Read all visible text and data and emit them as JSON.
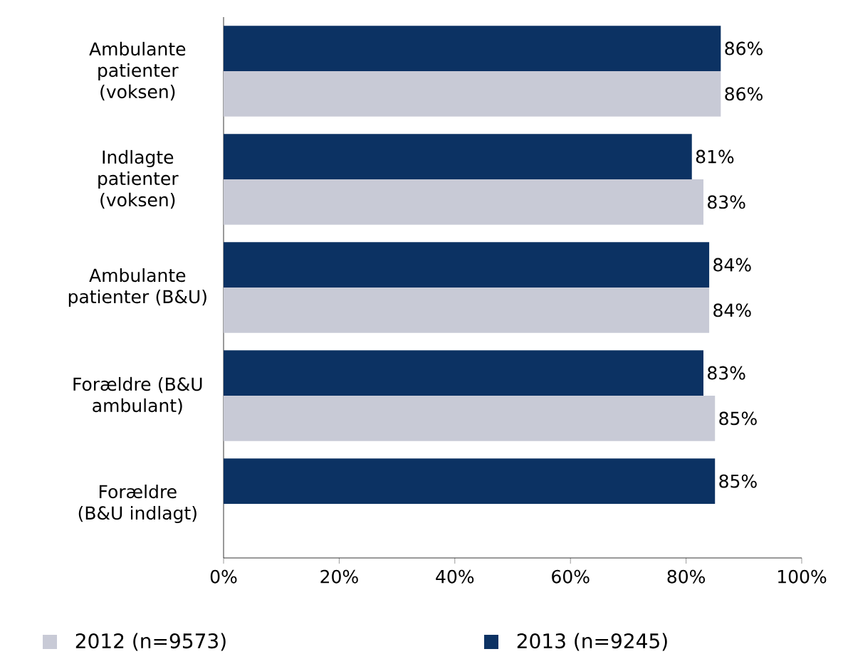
{
  "chart_data": {
    "type": "bar",
    "orientation": "horizontal",
    "categories": [
      "Ambulante patienter (voksen)",
      "Indlagte patienter (voksen)",
      "Ambulante patienter (B&U)",
      "Forældre (B&U ambulant)",
      "Forældre (B&U indlagt)"
    ],
    "series": [
      {
        "name": "2012 (n=9573)",
        "color": "#c8cad6",
        "values": [
          86,
          83,
          84,
          85,
          null
        ],
        "value_labels": [
          "86%",
          "83%",
          "84%",
          "85%",
          null
        ]
      },
      {
        "name": "2013 (n=9245)",
        "color": "#0c3263",
        "values": [
          86,
          81,
          84,
          83,
          85
        ],
        "value_labels": [
          "86%",
          "81%",
          "84%",
          "83%",
          "85%"
        ]
      }
    ],
    "xlim": [
      0,
      100
    ],
    "xticks": [
      {
        "value": 0,
        "label": "0%"
      },
      {
        "value": 20,
        "label": "20%"
      },
      {
        "value": 40,
        "label": "40%"
      },
      {
        "value": 60,
        "label": "60%"
      },
      {
        "value": 80,
        "label": "80%"
      },
      {
        "value": 100,
        "label": "100%"
      }
    ],
    "legend": "bottom",
    "grid": false
  }
}
